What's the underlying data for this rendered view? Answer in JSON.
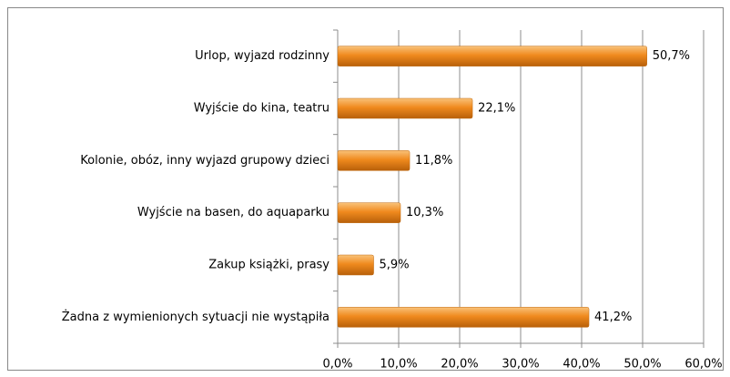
{
  "chart_data": {
    "type": "bar",
    "orientation": "horizontal",
    "categories": [
      "Urlop, wyjazd rodzinny",
      "Wyjście do kina, teatru",
      "Kolonie, obóz, inny wyjazd grupowy dzieci",
      "Wyjście na basen, do aquaparku",
      "Zakup książki, prasy",
      "Żadna z wymienionych sytuacji nie wystąpiła"
    ],
    "values": [
      50.7,
      22.1,
      11.8,
      10.3,
      5.9,
      41.2
    ],
    "value_labels": [
      "50,7%",
      "22,1%",
      "11,8%",
      "10,3%",
      "5,9%",
      "41,2%"
    ],
    "color": "#f08a1e",
    "xlim": [
      0,
      60
    ],
    "xticks": [
      {
        "value": 0,
        "label": "0,0%"
      },
      {
        "value": 10,
        "label": "10,0%"
      },
      {
        "value": 20,
        "label": "20,0%"
      },
      {
        "value": 30,
        "label": "30,0%"
      },
      {
        "value": 40,
        "label": "40,0%"
      },
      {
        "value": 50,
        "label": "50,0%"
      },
      {
        "value": 60,
        "label": "60,0%"
      }
    ],
    "grid": true
  }
}
